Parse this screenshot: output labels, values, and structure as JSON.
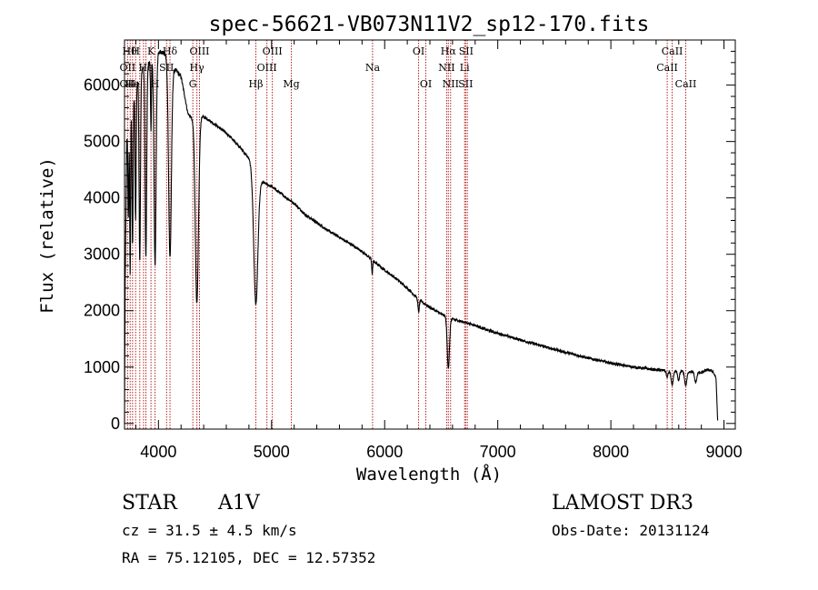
{
  "chart_data": {
    "type": "line",
    "title": "spec-56621-VB073N11V2_sp12-170.fits",
    "xlabel": "Wavelength (Å)",
    "ylabel": "Flux (relative)",
    "xlim": [
      3700,
      9100
    ],
    "ylim": [
      -100,
      6800
    ],
    "xticks": [
      4000,
      5000,
      6000,
      7000,
      8000,
      9000
    ],
    "yticks": [
      0,
      1000,
      2000,
      3000,
      4000,
      5000,
      6000
    ],
    "continuum": [
      [
        3700,
        0
      ],
      [
        3706,
        2500
      ],
      [
        3720,
        5000
      ],
      [
        3760,
        5700
      ],
      [
        3800,
        6000
      ],
      [
        3860,
        6300
      ],
      [
        3920,
        6400
      ],
      [
        3980,
        6500
      ],
      [
        4020,
        6600
      ],
      [
        4060,
        6550
      ],
      [
        4110,
        6300
      ],
      [
        4160,
        6250
      ],
      [
        4200,
        6150
      ],
      [
        4260,
        5500
      ],
      [
        4300,
        5400
      ],
      [
        4380,
        5450
      ],
      [
        4420,
        5420
      ],
      [
        4500,
        5300
      ],
      [
        4600,
        5150
      ],
      [
        4700,
        4950
      ],
      [
        4800,
        4700
      ],
      [
        4850,
        4450
      ],
      [
        4900,
        4300
      ],
      [
        5000,
        4200
      ],
      [
        5100,
        4050
      ],
      [
        5200,
        3900
      ],
      [
        5300,
        3700
      ],
      [
        5400,
        3560
      ],
      [
        5500,
        3420
      ],
      [
        5600,
        3300
      ],
      [
        5700,
        3180
      ],
      [
        5800,
        3050
      ],
      [
        5900,
        2880
      ],
      [
        6000,
        2720
      ],
      [
        6100,
        2570
      ],
      [
        6200,
        2400
      ],
      [
        6300,
        2200
      ],
      [
        6400,
        2060
      ],
      [
        6500,
        1940
      ],
      [
        6600,
        1850
      ],
      [
        6700,
        1800
      ],
      [
        6800,
        1740
      ],
      [
        6900,
        1660
      ],
      [
        7000,
        1600
      ],
      [
        7200,
        1480
      ],
      [
        7400,
        1370
      ],
      [
        7600,
        1260
      ],
      [
        7800,
        1160
      ],
      [
        8000,
        1070
      ],
      [
        8200,
        1000
      ],
      [
        8400,
        950
      ],
      [
        8500,
        940
      ],
      [
        8600,
        930
      ],
      [
        8700,
        920
      ],
      [
        8800,
        900
      ],
      [
        8850,
        950
      ],
      [
        8900,
        930
      ],
      [
        8930,
        800
      ],
      [
        8945,
        0
      ]
    ],
    "absorption": [
      [
        3734,
        1600,
        4
      ],
      [
        3750,
        2900,
        4
      ],
      [
        3771,
        2600,
        5
      ],
      [
        3798,
        2400,
        5
      ],
      [
        3835,
        3300,
        6
      ],
      [
        3889,
        3400,
        7
      ],
      [
        3934,
        1200,
        4
      ],
      [
        3970,
        3700,
        9
      ],
      [
        4102,
        3400,
        12
      ],
      [
        4340,
        3300,
        14
      ],
      [
        4861,
        2300,
        18
      ],
      [
        5890,
        250,
        4
      ],
      [
        6300,
        220,
        6
      ],
      [
        6563,
        900,
        10
      ],
      [
        8498,
        120,
        8
      ],
      [
        8542,
        250,
        10
      ],
      [
        8598,
        180,
        8
      ],
      [
        8662,
        250,
        10
      ],
      [
        8750,
        180,
        10
      ]
    ],
    "lines": {
      "wavelengths": [
        3727,
        3750,
        3771,
        3798,
        3835,
        3868,
        3889,
        3934,
        3970,
        4072,
        4102,
        4304,
        4340,
        4363,
        4861,
        4959,
        5007,
        5175,
        5893,
        6300,
        6364,
        6548,
        6563,
        6583,
        6707,
        6716,
        6731,
        8498,
        8542,
        8662
      ],
      "labels": [
        {
          "text": "Hθ",
          "x": 3745,
          "row": 0
        },
        {
          "text": "H",
          "x": 3798,
          "row": 0
        },
        {
          "text": "K",
          "x": 3934,
          "row": 0
        },
        {
          "text": "Hδ",
          "x": 4102,
          "row": 0
        },
        {
          "text": "OIII",
          "x": 4363,
          "row": 0
        },
        {
          "text": "OIII",
          "x": 5007,
          "row": 0
        },
        {
          "text": "OI",
          "x": 6300,
          "row": 0
        },
        {
          "text": "Hα",
          "x": 6563,
          "row": 0
        },
        {
          "text": "SII",
          "x": 6720,
          "row": 0
        },
        {
          "text": "CaII",
          "x": 8542,
          "row": 0
        },
        {
          "text": "OII",
          "x": 3727,
          "row": 1
        },
        {
          "text": "He",
          "x": 3889,
          "row": 1
        },
        {
          "text": "SII",
          "x": 4072,
          "row": 1
        },
        {
          "text": "Hγ",
          "x": 4340,
          "row": 1
        },
        {
          "text": "OIII",
          "x": 4959,
          "row": 1
        },
        {
          "text": "Na",
          "x": 5893,
          "row": 1
        },
        {
          "text": "NII",
          "x": 6548,
          "row": 1
        },
        {
          "text": "Li",
          "x": 6707,
          "row": 1
        },
        {
          "text": "CaII",
          "x": 8498,
          "row": 1
        },
        {
          "text": "OII",
          "x": 3727,
          "row": 2
        },
        {
          "text": "He",
          "x": 3770,
          "row": 2
        },
        {
          "text": "H",
          "x": 3970,
          "row": 2
        },
        {
          "text": "G",
          "x": 4304,
          "row": 2
        },
        {
          "text": "Hβ",
          "x": 4861,
          "row": 2
        },
        {
          "text": "Mg",
          "x": 5175,
          "row": 2
        },
        {
          "text": "OI",
          "x": 6364,
          "row": 2
        },
        {
          "text": "NII",
          "x": 6583,
          "row": 2
        },
        {
          "text": "SII",
          "x": 6716,
          "row": 2
        },
        {
          "text": "CaII",
          "x": 8662,
          "row": 2
        }
      ]
    }
  },
  "info": {
    "class_label": "STAR",
    "subclass": "A1V",
    "survey": "LAMOST DR3",
    "cz": "cz = 31.5 ± 4.5 km/s",
    "obs_date": "Obs-Date: 20131124",
    "coords": "RA =  75.12105, DEC =  12.57352"
  },
  "colors": {
    "line_marker": "#b22222",
    "spectrum": "#000000",
    "axes": "#000000"
  }
}
